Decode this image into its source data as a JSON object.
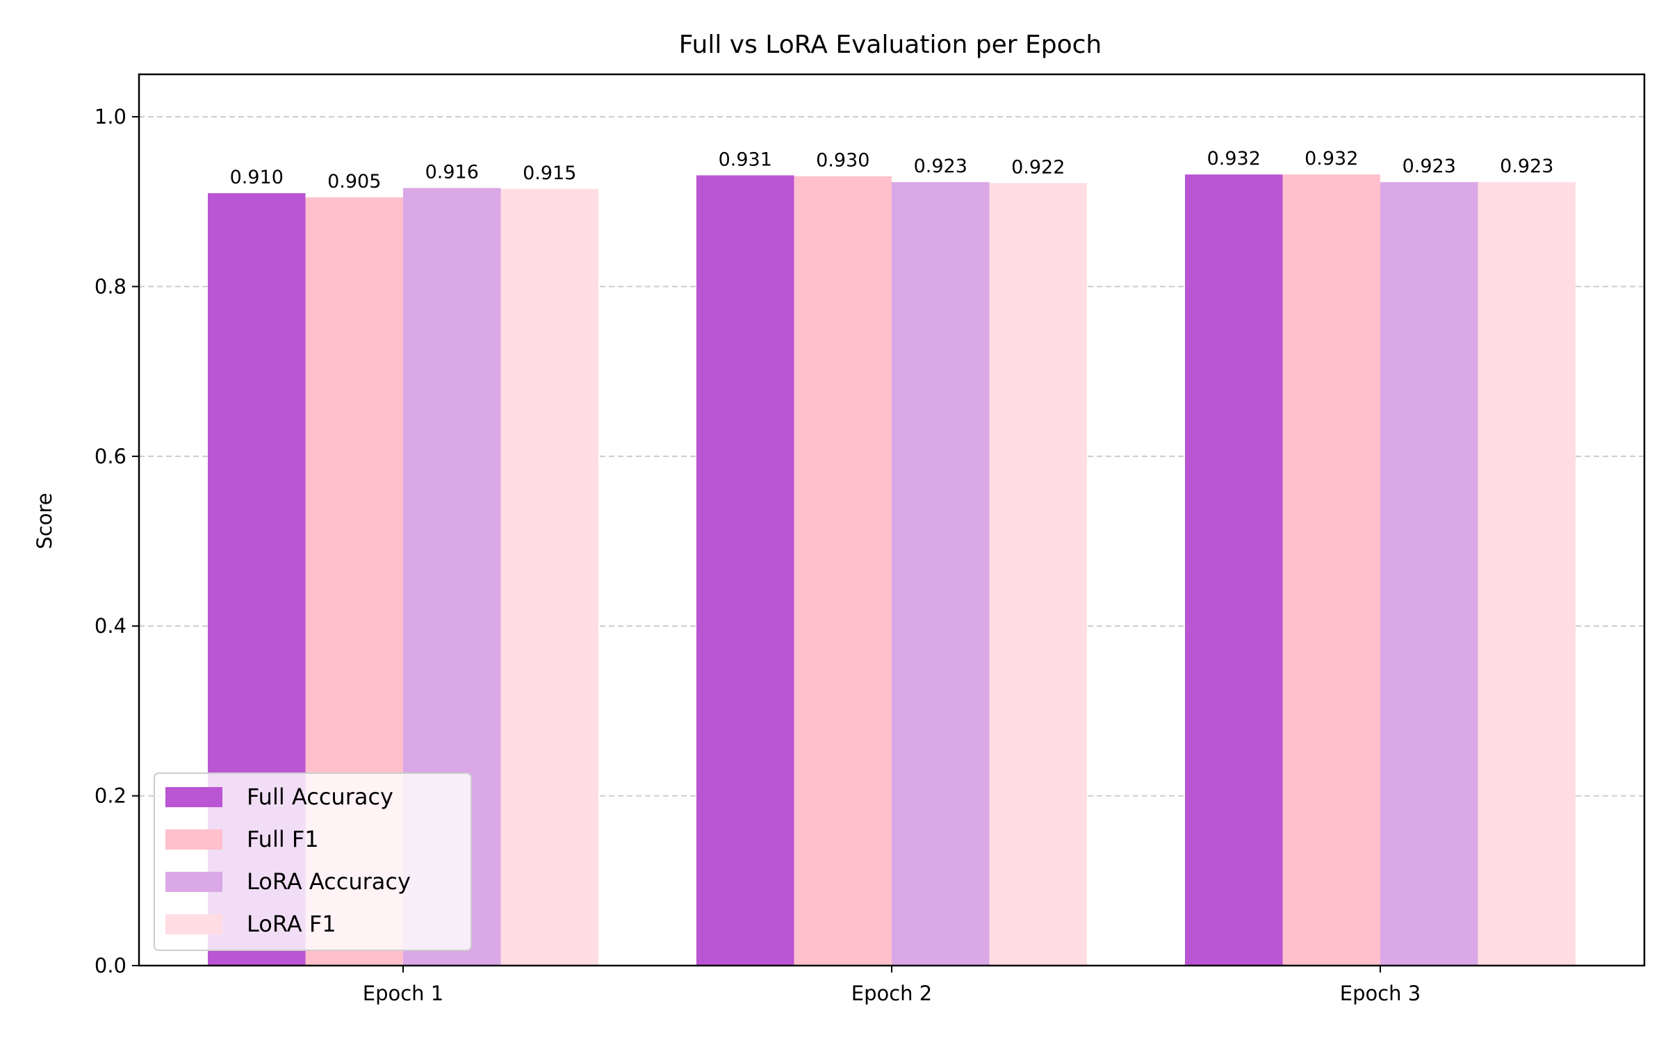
{
  "chart_data": {
    "type": "bar",
    "title": "Full vs LoRA Evaluation per Epoch",
    "xlabel": "",
    "ylabel": "Score",
    "ylim": [
      0,
      1.05
    ],
    "yticks": [
      "0.0",
      "0.2",
      "0.4",
      "0.6",
      "0.8",
      "1.0"
    ],
    "grid": "horizontal dashed",
    "legend_position": "lower-left",
    "categories": [
      "Epoch 1",
      "Epoch 2",
      "Epoch 3"
    ],
    "series": [
      {
        "name": "Full Accuracy",
        "color": "#BA55D3",
        "values": [
          0.91,
          0.931,
          0.932
        ],
        "labels": [
          "0.910",
          "0.931",
          "0.932"
        ]
      },
      {
        "name": "Full F1",
        "color": "#FFC0CB",
        "values": [
          0.905,
          0.93,
          0.932
        ],
        "labels": [
          "0.905",
          "0.930",
          "0.932"
        ]
      },
      {
        "name": "LoRA Accuracy",
        "color": "#DAA8E6",
        "values": [
          0.916,
          0.923,
          0.923
        ],
        "labels": [
          "0.916",
          "0.923",
          "0.923"
        ]
      },
      {
        "name": "LoRA F1",
        "color": "#FFDDE2",
        "values": [
          0.915,
          0.922,
          0.923
        ],
        "labels": [
          "0.915",
          "0.922",
          "0.923"
        ]
      }
    ]
  }
}
